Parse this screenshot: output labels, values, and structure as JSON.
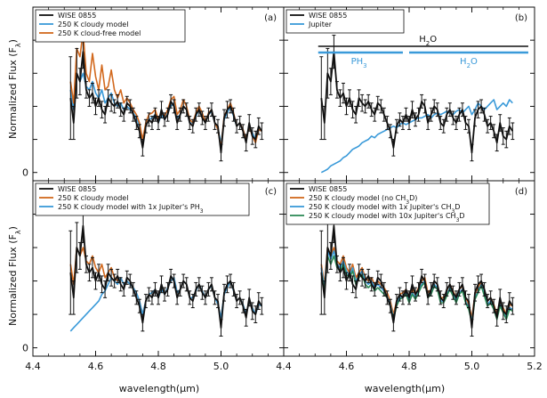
{
  "chart_data": {
    "type": "line",
    "ylabel_left": "Normalized Flux (F",
    "ylabel_sub": "λ",
    "ylabel_close": ")",
    "xlabel": "wavelength(",
    "xlabel_unit": "μm",
    "xlabel_close": ")",
    "xlim": [
      4.4,
      5.2
    ],
    "ylim": [
      -0.05,
      1.0
    ],
    "x_ticks": [
      4.4,
      4.6,
      4.8,
      5.0,
      5.2
    ],
    "x_tick_labels_left": [
      "4.4",
      "4.6",
      "4.8",
      "5.0",
      "4.4"
    ],
    "x_tick_labels_right": [
      "4.6",
      "4.8",
      "5.0",
      "5.2"
    ],
    "y_tick_labels": [
      "0"
    ],
    "colors": {
      "data": "#111111",
      "cloudy": "#3a9ad9",
      "cloudfree": "#d2691e",
      "orange": "#d2691e",
      "blue": "#3a9ad9",
      "green": "#2e8b57"
    },
    "data_points": {
      "x": [
        4.52,
        4.53,
        4.54,
        4.55,
        4.56,
        4.57,
        4.58,
        4.59,
        4.6,
        4.61,
        4.62,
        4.63,
        4.64,
        4.65,
        4.66,
        4.67,
        4.68,
        4.69,
        4.7,
        4.71,
        4.72,
        4.73,
        4.74,
        4.75,
        4.76,
        4.77,
        4.78,
        4.79,
        4.8,
        4.81,
        4.82,
        4.83,
        4.84,
        4.85,
        4.86,
        4.87,
        4.88,
        4.89,
        4.9,
        4.91,
        4.92,
        4.93,
        4.94,
        4.95,
        4.96,
        4.97,
        4.98,
        4.99,
        5.0,
        5.01,
        5.02,
        5.03,
        5.04,
        5.05,
        5.06,
        5.07,
        5.08,
        5.09,
        5.1,
        5.11,
        5.12,
        5.13
      ],
      "y": [
        0.45,
        0.3,
        0.6,
        0.55,
        0.73,
        0.5,
        0.45,
        0.48,
        0.4,
        0.45,
        0.38,
        0.35,
        0.45,
        0.42,
        0.4,
        0.43,
        0.38,
        0.35,
        0.42,
        0.4,
        0.35,
        0.3,
        0.25,
        0.15,
        0.28,
        0.32,
        0.3,
        0.35,
        0.3,
        0.38,
        0.32,
        0.35,
        0.43,
        0.4,
        0.3,
        0.35,
        0.4,
        0.38,
        0.3,
        0.28,
        0.35,
        0.38,
        0.33,
        0.3,
        0.35,
        0.38,
        0.3,
        0.28,
        0.12,
        0.33,
        0.38,
        0.4,
        0.35,
        0.28,
        0.3,
        0.25,
        0.18,
        0.3,
        0.22,
        0.2,
        0.28,
        0.25
      ],
      "err": [
        0.25,
        0.1,
        0.15,
        0.08,
        0.1,
        0.05,
        0.05,
        0.06,
        0.05,
        0.05,
        0.05,
        0.05,
        0.05,
        0.05,
        0.04,
        0.04,
        0.04,
        0.04,
        0.04,
        0.04,
        0.04,
        0.04,
        0.04,
        0.05,
        0.04,
        0.04,
        0.04,
        0.04,
        0.04,
        0.05,
        0.04,
        0.04,
        0.04,
        0.04,
        0.04,
        0.04,
        0.04,
        0.04,
        0.04,
        0.04,
        0.04,
        0.04,
        0.04,
        0.04,
        0.04,
        0.04,
        0.04,
        0.04,
        0.05,
        0.05,
        0.05,
        0.04,
        0.04,
        0.04,
        0.04,
        0.04,
        0.05,
        0.05,
        0.05,
        0.05,
        0.05,
        0.05
      ]
    },
    "panels": [
      {
        "tag": "(a)",
        "legend": [
          "WISE 0855",
          "250 K cloudy model",
          "250 K cloud-free model"
        ],
        "legend_colors": [
          "#111111",
          "#3a9ad9",
          "#d2691e"
        ],
        "models": [
          {
            "name": "250 K cloudy model",
            "color": "#3a9ad9",
            "y": [
              0.5,
              0.38,
              0.6,
              0.55,
              0.6,
              0.52,
              0.5,
              0.55,
              0.48,
              0.45,
              0.5,
              0.42,
              0.45,
              0.48,
              0.42,
              0.4,
              0.42,
              0.38,
              0.4,
              0.38,
              0.36,
              0.33,
              0.28,
              0.2,
              0.28,
              0.32,
              0.33,
              0.35,
              0.3,
              0.35,
              0.32,
              0.36,
              0.4,
              0.42,
              0.33,
              0.35,
              0.4,
              0.38,
              0.3,
              0.3,
              0.34,
              0.38,
              0.34,
              0.3,
              0.35,
              0.37,
              0.3,
              0.26,
              0.18,
              0.32,
              0.36,
              0.4,
              0.34,
              0.28,
              0.3,
              0.26,
              0.2,
              0.28,
              0.24,
              0.2,
              0.26,
              0.25
            ]
          },
          {
            "name": "250 K cloud-free model",
            "color": "#d2691e",
            "y": [
              0.55,
              0.42,
              0.75,
              0.7,
              0.85,
              0.6,
              0.55,
              0.72,
              0.58,
              0.5,
              0.65,
              0.5,
              0.52,
              0.62,
              0.5,
              0.45,
              0.5,
              0.42,
              0.45,
              0.42,
              0.38,
              0.35,
              0.3,
              0.2,
              0.3,
              0.35,
              0.36,
              0.38,
              0.32,
              0.36,
              0.34,
              0.38,
              0.44,
              0.46,
              0.35,
              0.38,
              0.44,
              0.4,
              0.32,
              0.3,
              0.36,
              0.4,
              0.36,
              0.3,
              0.36,
              0.38,
              0.3,
              0.26,
              0.15,
              0.34,
              0.38,
              0.42,
              0.36,
              0.28,
              0.3,
              0.26,
              0.2,
              0.28,
              0.22,
              0.18,
              0.26,
              0.25
            ]
          }
        ]
      },
      {
        "tag": "(b)",
        "legend": [
          "WISE 0855",
          "Jupiter"
        ],
        "legend_colors": [
          "#111111",
          "#3a9ad9"
        ],
        "annotations": {
          "h2o_top": "H",
          "h2o_top_sub": "2",
          "h2o_top_end": "O",
          "ph3": "PH",
          "ph3_sub": "3",
          "h2o_mid": "H",
          "h2o_mid_sub": "2",
          "h2o_mid_end": "O"
        },
        "models": [
          {
            "name": "Jupiter",
            "color": "#3a9ad9",
            "y": [
              0.0,
              0.01,
              0.02,
              0.04,
              0.05,
              0.06,
              0.07,
              0.09,
              0.1,
              0.12,
              0.14,
              0.15,
              0.16,
              0.18,
              0.19,
              0.2,
              0.22,
              0.21,
              0.23,
              0.24,
              0.25,
              0.26,
              0.27,
              0.28,
              0.27,
              0.29,
              0.3,
              0.29,
              0.3,
              0.31,
              0.32,
              0.33,
              0.33,
              0.34,
              0.35,
              0.33,
              0.35,
              0.36,
              0.35,
              0.36,
              0.37,
              0.36,
              0.35,
              0.37,
              0.38,
              0.36,
              0.38,
              0.4,
              0.35,
              0.38,
              0.42,
              0.4,
              0.38,
              0.4,
              0.42,
              0.44,
              0.38,
              0.4,
              0.42,
              0.4,
              0.44,
              0.42
            ]
          }
        ]
      },
      {
        "tag": "(c)",
        "legend": [
          "WISE 0855",
          "250 K cloudy model",
          "250 K cloudy model with 1x Jupiter's PH"
        ],
        "legend_sub": "3",
        "legend_colors": [
          "#111111",
          "#d2691e",
          "#3a9ad9"
        ],
        "models": [
          {
            "name": "250 K cloudy model",
            "color": "#d2691e",
            "y": [
              0.5,
              0.38,
              0.6,
              0.55,
              0.6,
              0.52,
              0.5,
              0.55,
              0.48,
              0.45,
              0.5,
              0.42,
              0.45,
              0.48,
              0.42,
              0.4,
              0.42,
              0.38,
              0.4,
              0.38,
              0.36,
              0.33,
              0.28,
              0.2,
              0.28,
              0.32,
              0.33,
              0.35,
              0.3,
              0.35,
              0.32,
              0.36,
              0.4,
              0.42,
              0.33,
              0.35,
              0.4,
              0.38,
              0.3,
              0.3,
              0.34,
              0.38,
              0.34,
              0.3,
              0.35,
              0.37,
              0.3,
              0.26,
              0.18,
              0.32,
              0.36,
              0.4,
              0.34,
              0.28,
              0.3,
              0.26,
              0.2,
              0.28,
              0.24,
              0.2,
              0.26,
              0.25
            ]
          },
          {
            "name": "250 K cloudy model with 1x Jupiter's PH3",
            "color": "#3a9ad9",
            "y": [
              0.1,
              0.12,
              0.14,
              0.16,
              0.18,
              0.2,
              0.22,
              0.24,
              0.26,
              0.28,
              0.32,
              0.34,
              0.38,
              0.42,
              0.4,
              0.38,
              0.42,
              0.38,
              0.4,
              0.38,
              0.36,
              0.33,
              0.28,
              0.2,
              0.28,
              0.32,
              0.33,
              0.35,
              0.3,
              0.35,
              0.32,
              0.36,
              0.4,
              0.42,
              0.33,
              0.35,
              0.4,
              0.38,
              0.3,
              0.3,
              0.34,
              0.38,
              0.34,
              0.3,
              0.35,
              0.37,
              0.3,
              0.26,
              0.18,
              0.32,
              0.36,
              0.4,
              0.34,
              0.28,
              0.3,
              0.26,
              0.2,
              0.28,
              0.24,
              0.2,
              0.26,
              0.25
            ]
          }
        ]
      },
      {
        "tag": "(d)",
        "legend": [
          "WISE 0855",
          "250 K cloudy model (no CH",
          "250 K cloudy model with 1x Jupiter's CH",
          "250 K cloudy model with 10x Jupiter's CH"
        ],
        "legend_suffix": [
          "",
          "D)",
          "D",
          "D"
        ],
        "legend_sub": "3",
        "legend_colors": [
          "#111111",
          "#d2691e",
          "#3a9ad9",
          "#2e8b57"
        ],
        "models": [
          {
            "name": "250 K cloudy model (no CH3D)",
            "color": "#d2691e",
            "y": [
              0.5,
              0.38,
              0.6,
              0.55,
              0.6,
              0.52,
              0.5,
              0.55,
              0.48,
              0.45,
              0.5,
              0.42,
              0.45,
              0.48,
              0.42,
              0.4,
              0.42,
              0.38,
              0.4,
              0.38,
              0.36,
              0.33,
              0.28,
              0.2,
              0.28,
              0.32,
              0.33,
              0.35,
              0.3,
              0.35,
              0.32,
              0.36,
              0.4,
              0.42,
              0.33,
              0.35,
              0.4,
              0.38,
              0.3,
              0.3,
              0.34,
              0.38,
              0.34,
              0.3,
              0.35,
              0.37,
              0.3,
              0.26,
              0.18,
              0.32,
              0.36,
              0.4,
              0.34,
              0.28,
              0.3,
              0.26,
              0.2,
              0.28,
              0.24,
              0.2,
              0.26,
              0.25
            ]
          },
          {
            "name": "250 K cloudy model with 1x Jupiter's CH3D",
            "color": "#3a9ad9",
            "y": [
              0.48,
              0.36,
              0.58,
              0.53,
              0.58,
              0.5,
              0.48,
              0.52,
              0.46,
              0.43,
              0.48,
              0.4,
              0.43,
              0.46,
              0.4,
              0.38,
              0.4,
              0.36,
              0.38,
              0.36,
              0.34,
              0.31,
              0.26,
              0.18,
              0.26,
              0.3,
              0.31,
              0.33,
              0.28,
              0.33,
              0.3,
              0.34,
              0.38,
              0.4,
              0.31,
              0.33,
              0.38,
              0.36,
              0.28,
              0.28,
              0.32,
              0.36,
              0.32,
              0.28,
              0.33,
              0.35,
              0.28,
              0.24,
              0.16,
              0.3,
              0.34,
              0.38,
              0.32,
              0.26,
              0.28,
              0.24,
              0.18,
              0.26,
              0.22,
              0.18,
              0.24,
              0.23
            ]
          },
          {
            "name": "250 K cloudy model with 10x Jupiter's CH3D",
            "color": "#2e8b57",
            "y": [
              0.45,
              0.34,
              0.55,
              0.5,
              0.55,
              0.48,
              0.46,
              0.5,
              0.44,
              0.42,
              0.46,
              0.38,
              0.42,
              0.44,
              0.38,
              0.36,
              0.38,
              0.34,
              0.36,
              0.34,
              0.32,
              0.3,
              0.25,
              0.17,
              0.25,
              0.29,
              0.3,
              0.32,
              0.27,
              0.32,
              0.29,
              0.33,
              0.37,
              0.39,
              0.3,
              0.32,
              0.37,
              0.35,
              0.27,
              0.27,
              0.31,
              0.35,
              0.31,
              0.27,
              0.32,
              0.34,
              0.27,
              0.23,
              0.15,
              0.29,
              0.33,
              0.37,
              0.31,
              0.25,
              0.27,
              0.23,
              0.17,
              0.25,
              0.21,
              0.17,
              0.23,
              0.22
            ]
          }
        ]
      }
    ]
  }
}
